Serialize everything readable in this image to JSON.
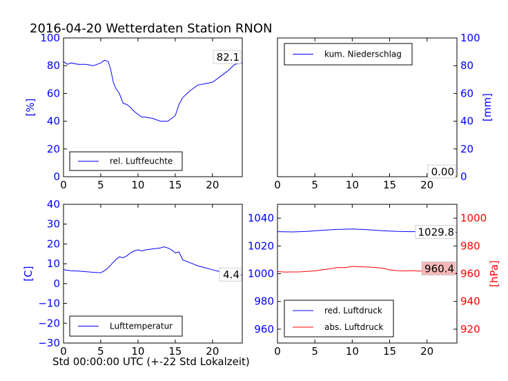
{
  "title": "2016-04-20 Wetterdaten Station RNON",
  "x_caption": "Std 00:00:00 UTC (+-22 Std Lokalzeit)",
  "colors": {
    "blue": "#0000ff",
    "red": "#ff0000",
    "black": "#000000"
  },
  "chart_data": [
    {
      "type": "line",
      "position": "top-left",
      "ylabel": "[%]",
      "xlim": [
        0,
        24
      ],
      "ylim": [
        0,
        100
      ],
      "xticks": [
        0,
        5,
        10,
        15,
        20
      ],
      "yticks": [
        0,
        20,
        40,
        60,
        80,
        100
      ],
      "grid": false,
      "legend": "bottom-left",
      "last_value_label": "82.1",
      "series": [
        {
          "name": "rel. Luftfeuchte",
          "color": "#0000ff",
          "x": [
            0,
            0.5,
            1,
            2,
            3,
            4,
            5,
            5.5,
            6,
            6.3,
            6.7,
            7,
            7.5,
            8,
            8.5,
            9,
            9.5,
            10,
            10.5,
            11,
            12,
            13,
            14,
            14.5,
            15,
            15.5,
            16,
            17,
            18,
            19,
            20,
            21,
            22,
            23,
            24
          ],
          "y": [
            83,
            81,
            82,
            81,
            81,
            80,
            82,
            84,
            83,
            78,
            68,
            64,
            60,
            53,
            52,
            50,
            47,
            45,
            43,
            43,
            42,
            40,
            40,
            42,
            44,
            52,
            57,
            62,
            66,
            67,
            68,
            72,
            76,
            81,
            82.1
          ]
        }
      ]
    },
    {
      "type": "line",
      "position": "top-right",
      "ylabel": "[mm]",
      "xlim": [
        0,
        24
      ],
      "ylim": [
        0,
        100
      ],
      "xticks": [
        0,
        5,
        10,
        15,
        20
      ],
      "yticks": [
        0,
        20,
        40,
        60,
        80,
        100
      ],
      "grid": false,
      "legend": "top-left",
      "last_value_label": "0.00",
      "series": [
        {
          "name": "kum. Niederschlag",
          "color": "#0000ff",
          "x": [
            0,
            24
          ],
          "y": [
            0,
            0
          ]
        }
      ]
    },
    {
      "type": "line",
      "position": "bottom-left",
      "ylabel": "[C]",
      "xlim": [
        0,
        24
      ],
      "ylim": [
        -30,
        40
      ],
      "xticks": [
        0,
        5,
        10,
        15,
        20
      ],
      "yticks": [
        -30,
        -20,
        -10,
        0,
        10,
        20,
        30,
        40
      ],
      "grid": false,
      "legend": "bottom-left",
      "last_value_label": "4.4",
      "series": [
        {
          "name": "Lufttemperatur",
          "color": "#0000ff",
          "x": [
            0,
            1,
            2,
            3,
            4,
            5,
            5.5,
            6,
            6.5,
            7,
            7.5,
            8,
            8.5,
            9,
            9.5,
            10,
            10.5,
            11,
            12,
            13,
            13.5,
            14,
            14.5,
            15,
            15.5,
            16,
            17,
            18,
            19,
            20,
            21,
            22,
            23,
            24
          ],
          "y": [
            7,
            6.5,
            6.3,
            6,
            5.7,
            5.5,
            6.5,
            8,
            10,
            12,
            13.5,
            13,
            14,
            15.5,
            16.5,
            17,
            16.5,
            17,
            17.5,
            18,
            18.5,
            18,
            17,
            15.5,
            16,
            12,
            10.5,
            9,
            8,
            7,
            6,
            5,
            4.6,
            4.4
          ]
        }
      ]
    },
    {
      "type": "line",
      "position": "bottom-right",
      "ylabel": "[hPa]",
      "xlim": [
        0,
        24
      ],
      "ylim_left": [
        950,
        1050
      ],
      "ylim_right": [
        910,
        1010
      ],
      "xticks": [
        0,
        5,
        10,
        15,
        20
      ],
      "yticks_left": [
        960,
        980,
        1000,
        1020,
        1040
      ],
      "yticks_right": [
        920,
        940,
        960,
        980,
        1000
      ],
      "grid": false,
      "legend": "bottom-left",
      "series": [
        {
          "name": "red. Luftdruck",
          "color": "#0000ff",
          "axis": "left",
          "last_value_label": "1029.8",
          "x": [
            0,
            2,
            4,
            6,
            8,
            10,
            11,
            12,
            14,
            16,
            18,
            20,
            22,
            24
          ],
          "y": [
            1030.3,
            1030.1,
            1030.5,
            1031.3,
            1031.9,
            1032.2,
            1032.0,
            1031.7,
            1031.0,
            1030.5,
            1030.3,
            1030.5,
            1030.2,
            1029.8
          ]
        },
        {
          "name": "abs. Luftdruck",
          "color": "#ff0000",
          "axis": "right",
          "last_value_label": "960.4",
          "x": [
            0,
            1,
            3,
            5,
            6,
            7,
            8,
            9,
            10,
            11,
            12,
            13,
            14,
            15,
            16,
            17,
            18,
            19,
            20,
            22,
            24
          ],
          "y": [
            961.5,
            961.2,
            961.3,
            962.0,
            962.8,
            963.5,
            964.5,
            964.3,
            965.2,
            965.0,
            964.8,
            964.5,
            964.0,
            962.8,
            962.2,
            962.0,
            962.2,
            961.9,
            962.0,
            961.5,
            960.4
          ]
        }
      ]
    }
  ]
}
